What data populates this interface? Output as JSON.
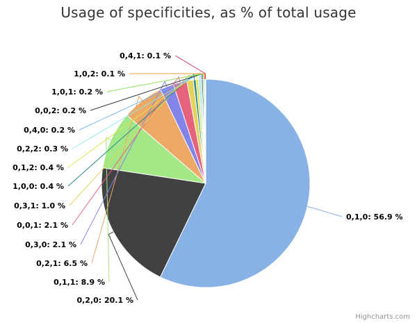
{
  "chart_data": {
    "type": "pie",
    "title": "Usage of specificities, as % of total usage",
    "categories": [
      "0,1,0",
      "0,2,0",
      "0,1,1",
      "0,2,1",
      "0,3,0",
      "0,0,1",
      "0,3,1",
      "1,0,0",
      "0,1,2",
      "0,2,2",
      "0,4,0",
      "0,0,2",
      "1,0,1",
      "1,0,2",
      "0,4,1"
    ],
    "values": [
      56.9,
      20.1,
      8.9,
      6.5,
      2.1,
      2.1,
      1.0,
      0.4,
      0.4,
      0.3,
      0.2,
      0.2,
      0.2,
      0.1,
      0.1
    ],
    "labels": [
      "0,1,0: 56.9 %",
      "0,2,0: 20.1 %",
      "0,1,1: 8.9 %",
      "0,2,1: 6.5 %",
      "0,3,0: 2.1 %",
      "0,0,1: 2.1 %",
      "0,3,1: 1.0 %",
      "1,0,0: 0.4 %",
      "0,1,2: 0.4 %",
      "0,2,2: 0.3 %",
      "0,4,0: 0.2 %",
      "0,0,2: 0.2 %",
      "1,0,1: 0.2 %",
      "1,0,2: 0.1 %",
      "0,4,1: 0.1 %"
    ],
    "colors": [
      "#88b2e6",
      "#414141",
      "#a3e887",
      "#eda866",
      "#8384ea",
      "#e6637d",
      "#e4d35a",
      "#2b8a8d",
      "#e1e24c",
      "#92e8e2",
      "#6fb6e6",
      "#2d3c3e",
      "#8ee058",
      "#ef9b3e",
      "#d63a63"
    ]
  },
  "credits": "Highcharts.com"
}
